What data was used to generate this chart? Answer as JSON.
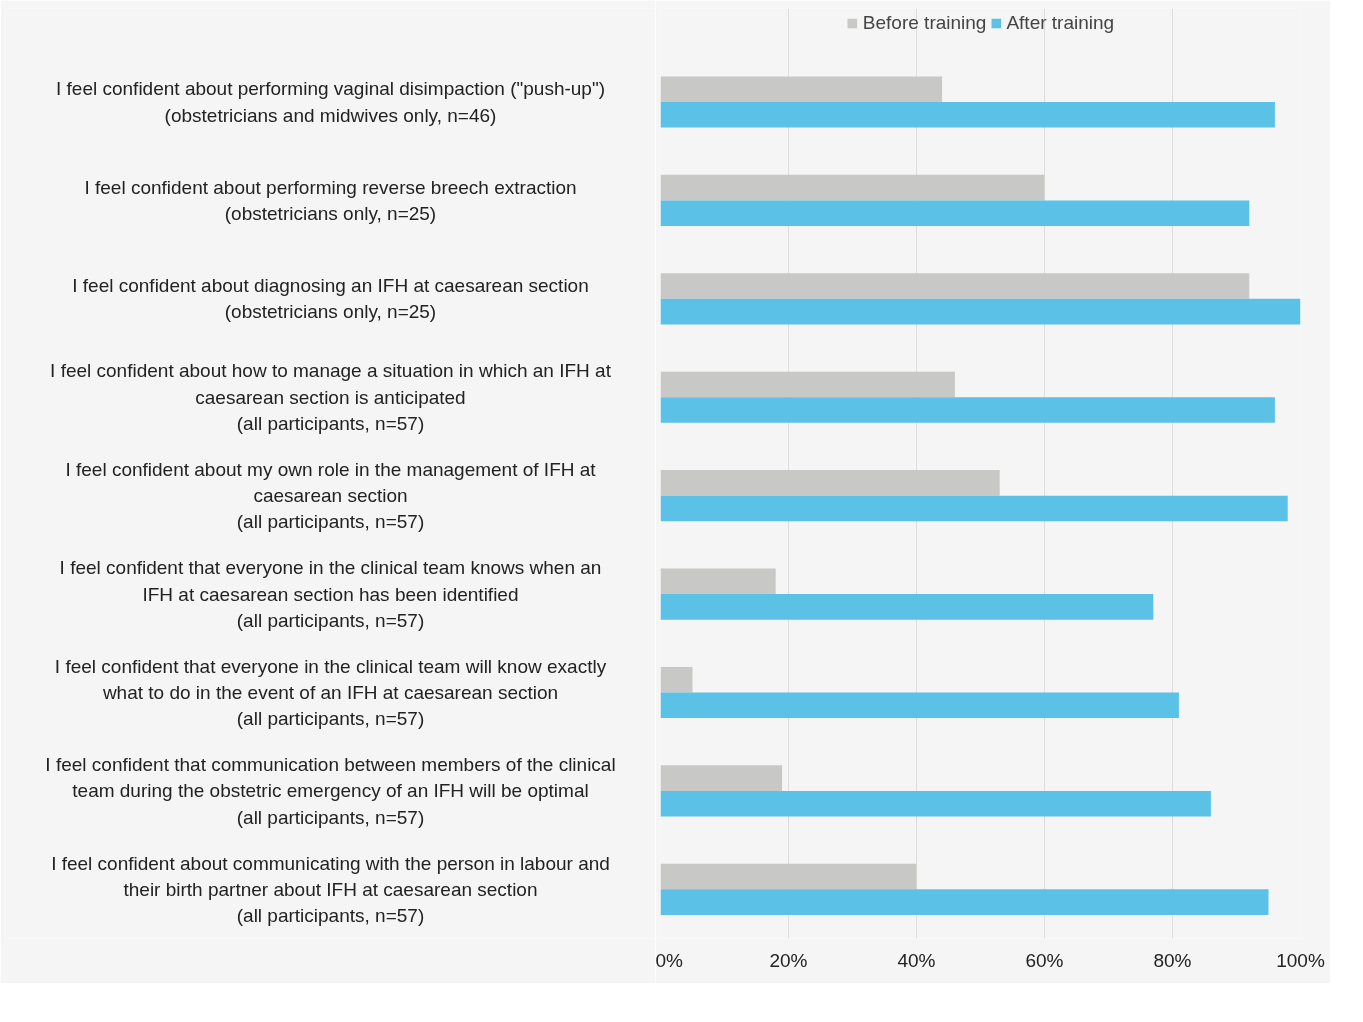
{
  "chart_data": {
    "type": "bar",
    "orientation": "horizontal",
    "categories": [
      "I feel confident about performing vaginal disimpaction (\"push-up\")\n(obstetricians and midwives only, n=46)",
      "I feel confident about performing reverse breech extraction\n(obstetricians only, n=25)",
      "I feel confident about diagnosing an IFH at caesarean section\n(obstetricians only, n=25)",
      "I feel confident about how to manage a situation in which an IFH at\ncaesarean section is anticipated\n(all participants, n=57)",
      "I feel confident about my own role in the management of IFH at\ncaesarean section\n(all participants, n=57)",
      "I feel confident that everyone in the clinical team knows when an\nIFH at caesarean section has been identified\n(all participants, n=57)",
      "I feel confident that everyone in the clinical team will know exactly\nwhat to do in the event of an IFH at caesarean section\n(all participants, n=57)",
      "I feel confident that communication between members of the clinical\nteam during the obstetric emergency of an IFH will be optimal\n(all participants, n=57)",
      "I feel confident about communicating with the person in labour and\ntheir birth partner about IFH at caesarean section\n(all participants, n=57)"
    ],
    "series": [
      {
        "name": "Before training",
        "color": "#c8c8c6",
        "values": [
          44,
          60,
          92,
          46,
          53,
          18,
          5,
          19,
          40
        ]
      },
      {
        "name": "After training",
        "color": "#5bc1e6",
        "values": [
          96,
          92,
          100,
          96,
          98,
          77,
          81,
          86,
          95
        ]
      }
    ],
    "xlim": [
      0,
      100
    ],
    "xticks": [
      {
        "value": 0,
        "label": "0%"
      },
      {
        "value": 20,
        "label": "20%"
      },
      {
        "value": 40,
        "label": "40%"
      },
      {
        "value": 60,
        "label": "60%"
      },
      {
        "value": 80,
        "label": "80%"
      },
      {
        "value": 100,
        "label": "100%"
      }
    ],
    "grid": "x",
    "legend": "top"
  }
}
